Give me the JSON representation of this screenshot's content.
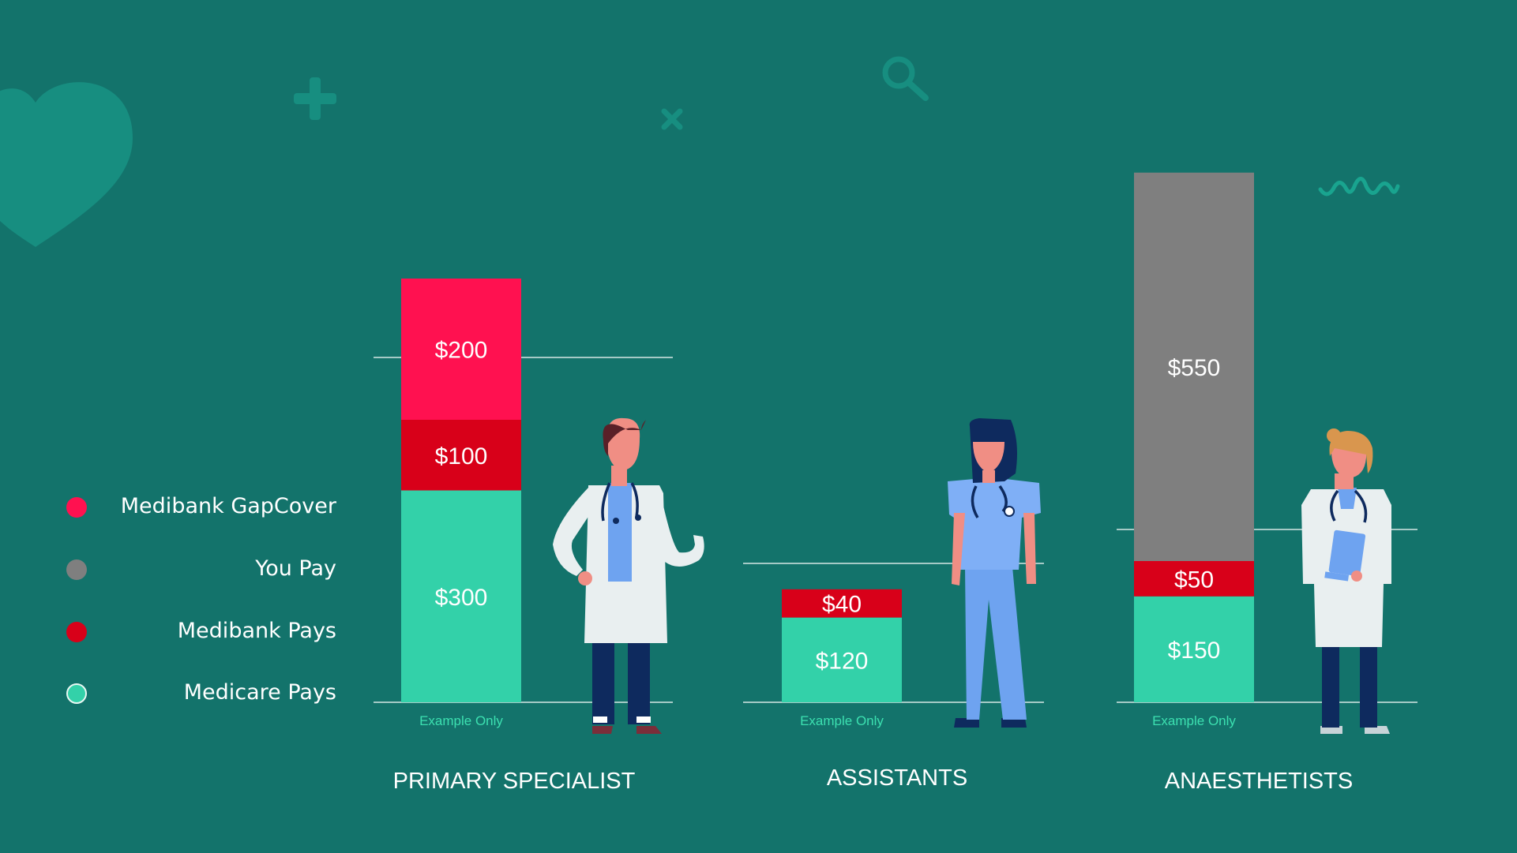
{
  "colors": {
    "background": "#13736B",
    "decor": "#178E80",
    "gapcover": "#FF1150",
    "you_pay": "#7F7F7F",
    "medibank": "#D80019",
    "medicare": "#33D1A9",
    "note": "#3CE0B0",
    "text": "#FFFFFF"
  },
  "legend": [
    {
      "label": "Medibank GapCover",
      "color": "#FF1150"
    },
    {
      "label": "You Pay",
      "color": "#7F7F7F"
    },
    {
      "label": "Medibank Pays",
      "color": "#D80019"
    },
    {
      "label": "Medicare Pays",
      "color": "#33D1A9"
    }
  ],
  "chart_data": {
    "type": "bar",
    "stacked": true,
    "categories": [
      "PRIMARY SPECIALIST",
      "ASSISTANTS",
      "ANAESTHETISTS"
    ],
    "note": "Example Only",
    "series": [
      {
        "name": "Medicare Pays",
        "values": [
          300,
          120,
          150
        ],
        "labels": [
          "$300",
          "$120",
          "$150"
        ]
      },
      {
        "name": "Medibank Pays",
        "values": [
          100,
          40,
          50
        ],
        "labels": [
          "$100",
          "$40",
          "$50"
        ]
      },
      {
        "name": "Medibank GapCover",
        "values": [
          200,
          0,
          0
        ],
        "labels": [
          "$200",
          "",
          ""
        ]
      },
      {
        "name": "You Pay",
        "values": [
          0,
          0,
          550
        ],
        "labels": [
          "",
          "",
          "$550"
        ]
      }
    ]
  },
  "icons": [
    "heart-icon",
    "plus-icon",
    "cross-icon",
    "magnifier-icon",
    "pulse-icon",
    "male-doctor-illustration",
    "female-nurse-illustration",
    "female-doctor-illustration"
  ]
}
